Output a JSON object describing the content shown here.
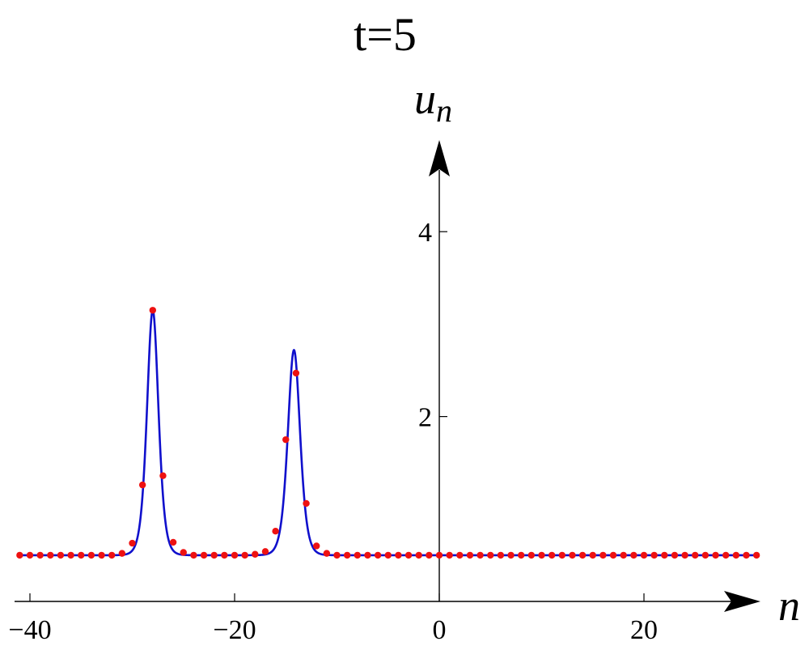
{
  "chart_data": {
    "type": "line",
    "title": "t=5",
    "xlabel": "n",
    "ylabel": "u",
    "ylabel_subscript": "n",
    "xlim": [
      -41.5,
      31
    ],
    "ylim": [
      -0.5,
      4.8
    ],
    "x_ticks": [
      {
        "value": -40,
        "label": "−40"
      },
      {
        "value": -20,
        "label": "−20"
      },
      {
        "value": 0,
        "label": "0"
      },
      {
        "value": 20,
        "label": "20"
      }
    ],
    "y_ticks": [
      {
        "value": 2,
        "label": "2"
      },
      {
        "value": 4,
        "label": "4"
      }
    ],
    "grid": false,
    "colors": {
      "curve": "#1010cc",
      "points": "#ee1111",
      "axes": "#000000"
    },
    "series": [
      {
        "kind": "curve",
        "baseline": 0.5,
        "peaks": [
          {
            "center": -28.0,
            "height": 3.15,
            "width": 0.75
          },
          {
            "center": -14.2,
            "height": 2.72,
            "width": 0.8
          }
        ]
      },
      {
        "kind": "points",
        "x": [
          -41,
          -40,
          -39,
          -38,
          -37,
          -36,
          -35,
          -34,
          -33,
          -32,
          -31,
          -30,
          -29,
          -28,
          -27,
          -26,
          -25,
          -24,
          -23,
          -22,
          -21,
          -20,
          -19,
          -18,
          -17,
          -16,
          -15,
          -14,
          -13,
          -12,
          -11,
          -10,
          -9,
          -8,
          -7,
          -6,
          -5,
          -4,
          -3,
          -2,
          -1,
          0,
          1,
          2,
          3,
          4,
          5,
          6,
          7,
          8,
          9,
          10,
          11,
          12,
          13,
          14,
          15,
          16,
          17,
          18,
          19,
          20,
          21,
          22,
          23,
          24,
          25,
          26,
          27,
          28,
          29,
          30,
          31
        ],
        "y": [
          0.5,
          0.5,
          0.5,
          0.5,
          0.5,
          0.5,
          0.5,
          0.5,
          0.5,
          0.5,
          0.52,
          0.63,
          1.26,
          3.15,
          1.36,
          0.64,
          0.53,
          0.5,
          0.5,
          0.5,
          0.5,
          0.5,
          0.5,
          0.51,
          0.54,
          0.76,
          1.75,
          2.47,
          1.06,
          0.6,
          0.52,
          0.5,
          0.5,
          0.5,
          0.5,
          0.5,
          0.5,
          0.5,
          0.5,
          0.5,
          0.5,
          0.5,
          0.5,
          0.5,
          0.5,
          0.5,
          0.5,
          0.5,
          0.5,
          0.5,
          0.5,
          0.5,
          0.5,
          0.5,
          0.5,
          0.5,
          0.5,
          0.5,
          0.5,
          0.5,
          0.5,
          0.5,
          0.5,
          0.5,
          0.5,
          0.5,
          0.5,
          0.5,
          0.5,
          0.5,
          0.5,
          0.5,
          0.5
        ]
      }
    ]
  }
}
